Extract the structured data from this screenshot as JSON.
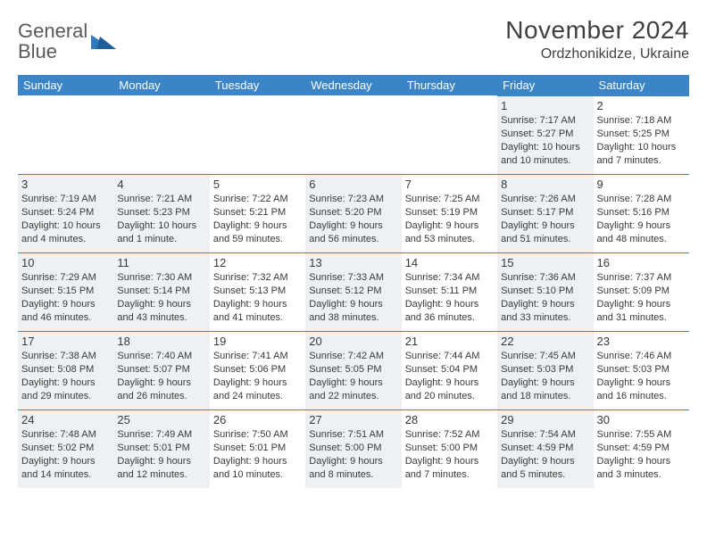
{
  "brand": {
    "name_gray": "General",
    "name_blue": "Blue"
  },
  "title": "November 2024",
  "location": "Ordzhonikidze, Ukraine",
  "colors": {
    "header_bg": "#3b85c6",
    "header_text": "#ffffff",
    "rule": "#3b85c6",
    "shade_bg": "#eef1f3",
    "text": "#3a3a3a",
    "logo_gray": "#5a5a5a",
    "logo_blue": "#2f7ac0"
  },
  "day_headers": [
    "Sunday",
    "Monday",
    "Tuesday",
    "Wednesday",
    "Thursday",
    "Friday",
    "Saturday"
  ],
  "weeks": [
    [
      null,
      null,
      null,
      null,
      null,
      {
        "n": "1",
        "sr": "7:17 AM",
        "ss": "5:27 PM",
        "dl": "10 hours and 10 minutes."
      },
      {
        "n": "2",
        "sr": "7:18 AM",
        "ss": "5:25 PM",
        "dl": "10 hours and 7 minutes."
      }
    ],
    [
      {
        "n": "3",
        "sr": "7:19 AM",
        "ss": "5:24 PM",
        "dl": "10 hours and 4 minutes."
      },
      {
        "n": "4",
        "sr": "7:21 AM",
        "ss": "5:23 PM",
        "dl": "10 hours and 1 minute."
      },
      {
        "n": "5",
        "sr": "7:22 AM",
        "ss": "5:21 PM",
        "dl": "9 hours and 59 minutes."
      },
      {
        "n": "6",
        "sr": "7:23 AM",
        "ss": "5:20 PM",
        "dl": "9 hours and 56 minutes."
      },
      {
        "n": "7",
        "sr": "7:25 AM",
        "ss": "5:19 PM",
        "dl": "9 hours and 53 minutes."
      },
      {
        "n": "8",
        "sr": "7:26 AM",
        "ss": "5:17 PM",
        "dl": "9 hours and 51 minutes."
      },
      {
        "n": "9",
        "sr": "7:28 AM",
        "ss": "5:16 PM",
        "dl": "9 hours and 48 minutes."
      }
    ],
    [
      {
        "n": "10",
        "sr": "7:29 AM",
        "ss": "5:15 PM",
        "dl": "9 hours and 46 minutes."
      },
      {
        "n": "11",
        "sr": "7:30 AM",
        "ss": "5:14 PM",
        "dl": "9 hours and 43 minutes."
      },
      {
        "n": "12",
        "sr": "7:32 AM",
        "ss": "5:13 PM",
        "dl": "9 hours and 41 minutes."
      },
      {
        "n": "13",
        "sr": "7:33 AM",
        "ss": "5:12 PM",
        "dl": "9 hours and 38 minutes."
      },
      {
        "n": "14",
        "sr": "7:34 AM",
        "ss": "5:11 PM",
        "dl": "9 hours and 36 minutes."
      },
      {
        "n": "15",
        "sr": "7:36 AM",
        "ss": "5:10 PM",
        "dl": "9 hours and 33 minutes."
      },
      {
        "n": "16",
        "sr": "7:37 AM",
        "ss": "5:09 PM",
        "dl": "9 hours and 31 minutes."
      }
    ],
    [
      {
        "n": "17",
        "sr": "7:38 AM",
        "ss": "5:08 PM",
        "dl": "9 hours and 29 minutes."
      },
      {
        "n": "18",
        "sr": "7:40 AM",
        "ss": "5:07 PM",
        "dl": "9 hours and 26 minutes."
      },
      {
        "n": "19",
        "sr": "7:41 AM",
        "ss": "5:06 PM",
        "dl": "9 hours and 24 minutes."
      },
      {
        "n": "20",
        "sr": "7:42 AM",
        "ss": "5:05 PM",
        "dl": "9 hours and 22 minutes."
      },
      {
        "n": "21",
        "sr": "7:44 AM",
        "ss": "5:04 PM",
        "dl": "9 hours and 20 minutes."
      },
      {
        "n": "22",
        "sr": "7:45 AM",
        "ss": "5:03 PM",
        "dl": "9 hours and 18 minutes."
      },
      {
        "n": "23",
        "sr": "7:46 AM",
        "ss": "5:03 PM",
        "dl": "9 hours and 16 minutes."
      }
    ],
    [
      {
        "n": "24",
        "sr": "7:48 AM",
        "ss": "5:02 PM",
        "dl": "9 hours and 14 minutes."
      },
      {
        "n": "25",
        "sr": "7:49 AM",
        "ss": "5:01 PM",
        "dl": "9 hours and 12 minutes."
      },
      {
        "n": "26",
        "sr": "7:50 AM",
        "ss": "5:01 PM",
        "dl": "9 hours and 10 minutes."
      },
      {
        "n": "27",
        "sr": "7:51 AM",
        "ss": "5:00 PM",
        "dl": "9 hours and 8 minutes."
      },
      {
        "n": "28",
        "sr": "7:52 AM",
        "ss": "5:00 PM",
        "dl": "9 hours and 7 minutes."
      },
      {
        "n": "29",
        "sr": "7:54 AM",
        "ss": "4:59 PM",
        "dl": "9 hours and 5 minutes."
      },
      {
        "n": "30",
        "sr": "7:55 AM",
        "ss": "4:59 PM",
        "dl": "9 hours and 3 minutes."
      }
    ]
  ],
  "labels": {
    "sunrise": "Sunrise:",
    "sunset": "Sunset:",
    "daylight": "Daylight:"
  }
}
